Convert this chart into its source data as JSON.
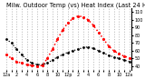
{
  "title": "Milw. Outdoor Temp (vs) Heat Index (Last 24 Hrs)",
  "line1_color": "#000000",
  "line2_color": "#ff0000",
  "background_color": "#ffffff",
  "grid_color": "#888888",
  "temp_values": [
    75,
    70,
    62,
    55,
    48,
    44,
    42,
    42,
    44,
    48,
    52,
    55,
    58,
    60,
    62,
    64,
    65,
    63,
    60,
    57,
    54,
    52,
    50,
    48,
    46
  ],
  "heat_values": [
    55,
    50,
    46,
    44,
    42,
    41,
    40,
    41,
    50,
    62,
    75,
    87,
    96,
    102,
    105,
    104,
    100,
    93,
    84,
    75,
    66,
    60,
    56,
    53,
    51
  ],
  "ylim_min": 35,
  "ylim_max": 115,
  "ytick_values": [
    40,
    50,
    60,
    70,
    80,
    90,
    100,
    110
  ],
  "ytick_labels": [
    "40",
    "50",
    "60",
    "70",
    "80",
    "90",
    "100",
    "110"
  ],
  "x_labels": [
    "12a",
    "",
    "2",
    "",
    "4",
    "",
    "6",
    "",
    "8",
    "",
    "10",
    "",
    "12p",
    "",
    "2",
    "",
    "4",
    "",
    "6",
    "",
    "8",
    "",
    "10",
    "",
    "12a"
  ],
  "title_fontsize": 4.8,
  "tick_fontsize": 3.5,
  "figsize": [
    1.6,
    0.87
  ],
  "dpi": 100,
  "marker_size_black": 2.0,
  "marker_size_red": 2.5
}
